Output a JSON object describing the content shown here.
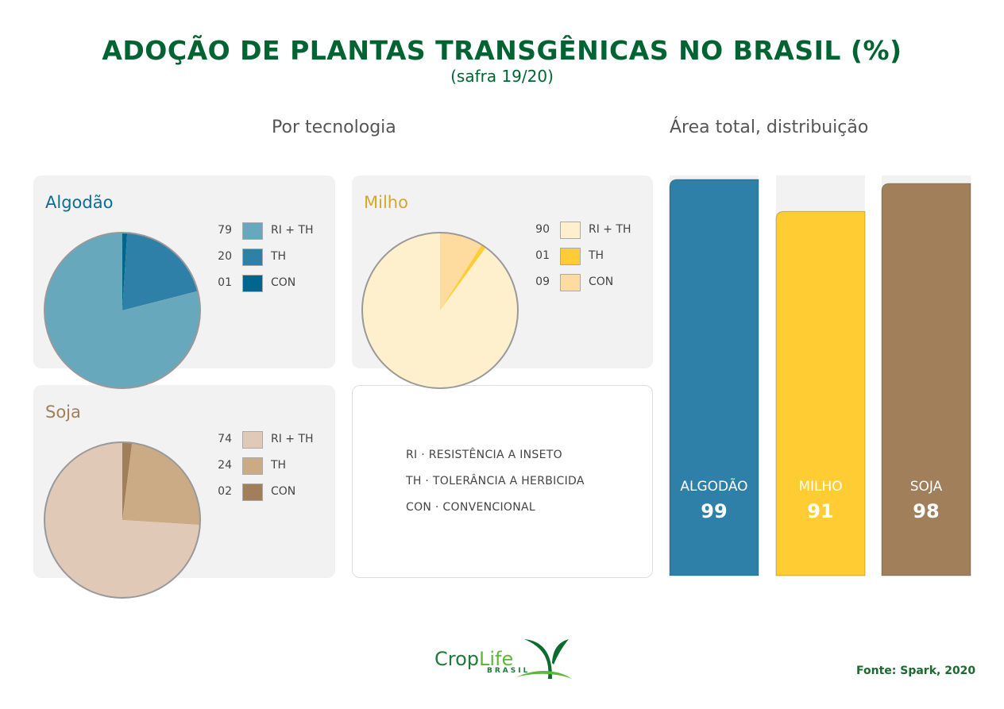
{
  "title": "ADOÇÃO DE PLANTAS TRANSGÊNICAS NO BRASIL (%)",
  "subtitle": "(safra 19/20)",
  "source": "Fonte: Spark, 2020",
  "logo": {
    "text": "CropLife",
    "sub": "BRASIL"
  },
  "legend_notes": [
    "RI · RESISTÊNCIA A INSETO",
    "TH · TOLERÂNCIA A HERBICIDA",
    "CON · CONVENCIONAL"
  ],
  "chart_data": [
    {
      "type": "pie",
      "section": "Por tecnologia",
      "title": "Algodão",
      "title_color": "#0a6d96",
      "slices": [
        {
          "label": "CON",
          "value": 1,
          "display": "01",
          "color": "#00668f"
        },
        {
          "label": "TH",
          "value": 20,
          "display": "20",
          "color": "#2e80a8"
        },
        {
          "label": "RI + TH",
          "value": 79,
          "display": "79",
          "color": "#67a8bd"
        }
      ]
    },
    {
      "type": "pie",
      "section": "Por tecnologia",
      "title": "Milho",
      "title_color": "#d4a82a",
      "slices": [
        {
          "label": "CON",
          "value": 9,
          "display": "09",
          "color": "#fedca0"
        },
        {
          "label": "TH",
          "value": 1,
          "display": "01",
          "color": "#ffcd33"
        },
        {
          "label": "RI + TH",
          "value": 90,
          "display": "90",
          "color": "#fef0cd"
        }
      ]
    },
    {
      "type": "pie",
      "section": "Por tecnologia",
      "title": "Soja",
      "title_color": "#a07f5a",
      "slices": [
        {
          "label": "CON",
          "value": 2,
          "display": "02",
          "color": "#a07f5a"
        },
        {
          "label": "TH",
          "value": 24,
          "display": "24",
          "color": "#cbab85"
        },
        {
          "label": "RI + TH",
          "value": 74,
          "display": "74",
          "color": "#e0c9b7"
        }
      ]
    },
    {
      "type": "bar",
      "title": "Área total, distribuição",
      "ylim": [
        0,
        100
      ],
      "categories": [
        "ALGODÃO",
        "MILHO",
        "SOJA"
      ],
      "values": [
        99,
        91,
        98
      ],
      "colors": [
        "#2e80a8",
        "#ffcd33",
        "#a07f5a"
      ]
    }
  ]
}
